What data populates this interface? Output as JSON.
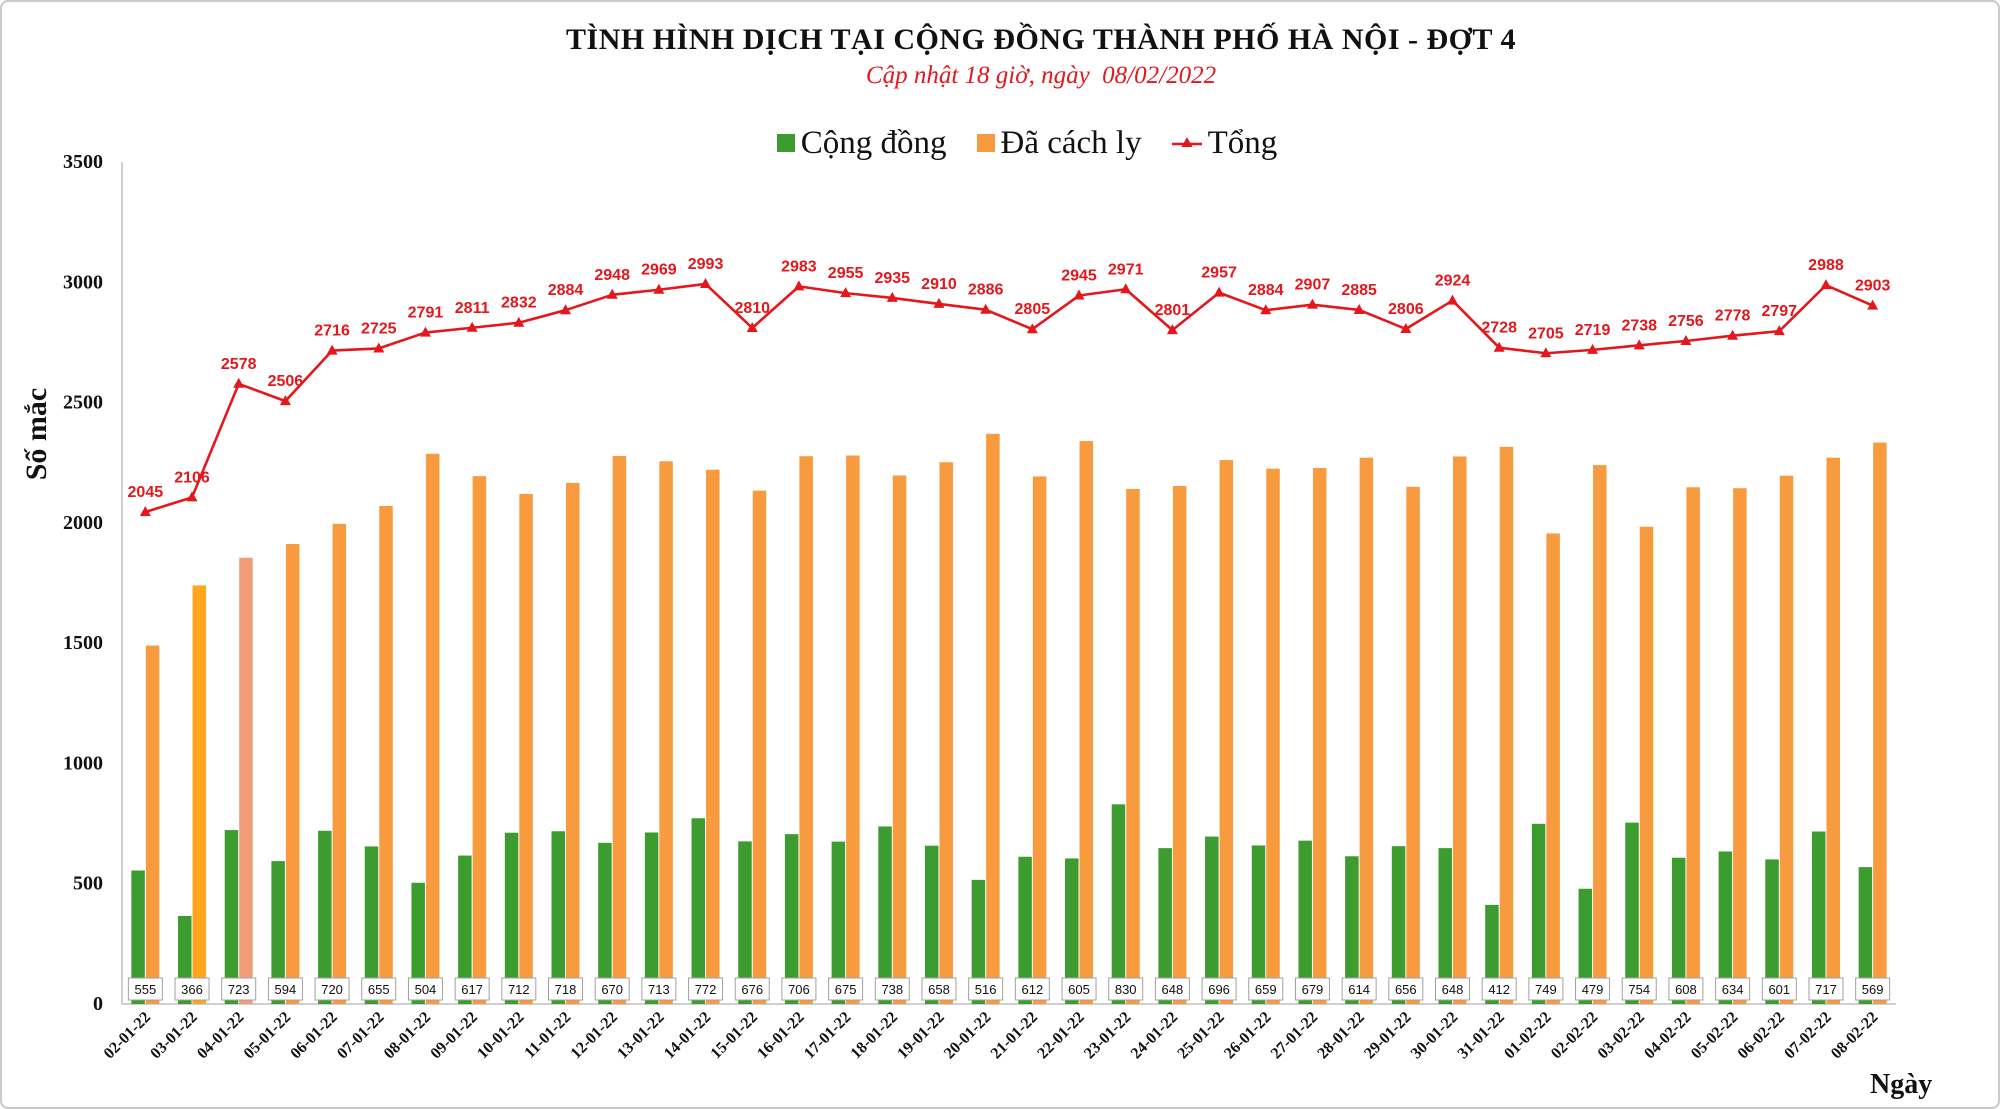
{
  "chart_data": {
    "type": "bar",
    "title": "TÌNH HÌNH DỊCH TẠI CỘNG ĐỒNG THÀNH PHỐ HÀ NỘI - ĐỢT 4",
    "subtitle": "Cập nhật 18 giờ, ngày  08/02/2022",
    "xlabel": "Ngày",
    "ylabel": "Số mắc",
    "ylim": [
      0,
      3500
    ],
    "yticks": [
      0,
      500,
      1000,
      1500,
      2000,
      2500,
      3000,
      3500
    ],
    "grid": false,
    "legend_position": "top-center",
    "categories": [
      "02-01-22",
      "03-01-22",
      "04-01-22",
      "05-01-22",
      "06-01-22",
      "07-01-22",
      "08-01-22",
      "09-01-22",
      "10-01-22",
      "11-01-22",
      "12-01-22",
      "13-01-22",
      "14-01-22",
      "15-01-22",
      "16-01-22",
      "17-01-22",
      "18-01-22",
      "19-01-22",
      "20-01-22",
      "21-01-22",
      "22-01-22",
      "23-01-22",
      "24-01-22",
      "25-01-22",
      "26-01-22",
      "27-01-22",
      "28-01-22",
      "29-01-22",
      "30-01-22",
      "31-01-22",
      "01-02-22",
      "02-02-22",
      "03-02-22",
      "04-02-22",
      "05-02-22",
      "06-02-22",
      "07-02-22",
      "08-02-22"
    ],
    "series": [
      {
        "name": "Cộng đồng",
        "type": "bar",
        "color": "#3c9c2f",
        "data_labels": true,
        "values": [
          555,
          366,
          723,
          594,
          720,
          655,
          504,
          617,
          712,
          718,
          670,
          713,
          772,
          676,
          706,
          675,
          738,
          658,
          516,
          612,
          605,
          830,
          648,
          696,
          659,
          679,
          614,
          656,
          648,
          412,
          749,
          479,
          754,
          608,
          634,
          601,
          717,
          569
        ]
      },
      {
        "name": "Đã cách ly",
        "type": "bar",
        "color": "#f89a3e",
        "point_colors": {
          "1": "#ffa51e",
          "2": "#f29b78"
        },
        "data_labels": false,
        "values": [
          1490,
          1740,
          1855,
          1912,
          1996,
          2070,
          2287,
          2194,
          2120,
          2166,
          2278,
          2256,
          2221,
          2134,
          2277,
          2280,
          2197,
          2252,
          2370,
          2193,
          2340,
          2141,
          2153,
          2261,
          2225,
          2228,
          2271,
          2150,
          2276,
          2316,
          1956,
          2240,
          1984,
          2148,
          2144,
          2196,
          2271,
          2334
        ]
      },
      {
        "name": "Tổng",
        "type": "line",
        "color": "#e3171c",
        "marker": "triangle",
        "data_labels": true,
        "values": [
          2045,
          2106,
          2578,
          2506,
          2716,
          2725,
          2791,
          2811,
          2832,
          2884,
          2948,
          2969,
          2993,
          2810,
          2983,
          2955,
          2935,
          2910,
          2886,
          2805,
          2945,
          2971,
          2801,
          2957,
          2884,
          2907,
          2885,
          2806,
          2924,
          2728,
          2705,
          2719,
          2738,
          2756,
          2778,
          2797,
          2988,
          2903
        ]
      }
    ]
  }
}
